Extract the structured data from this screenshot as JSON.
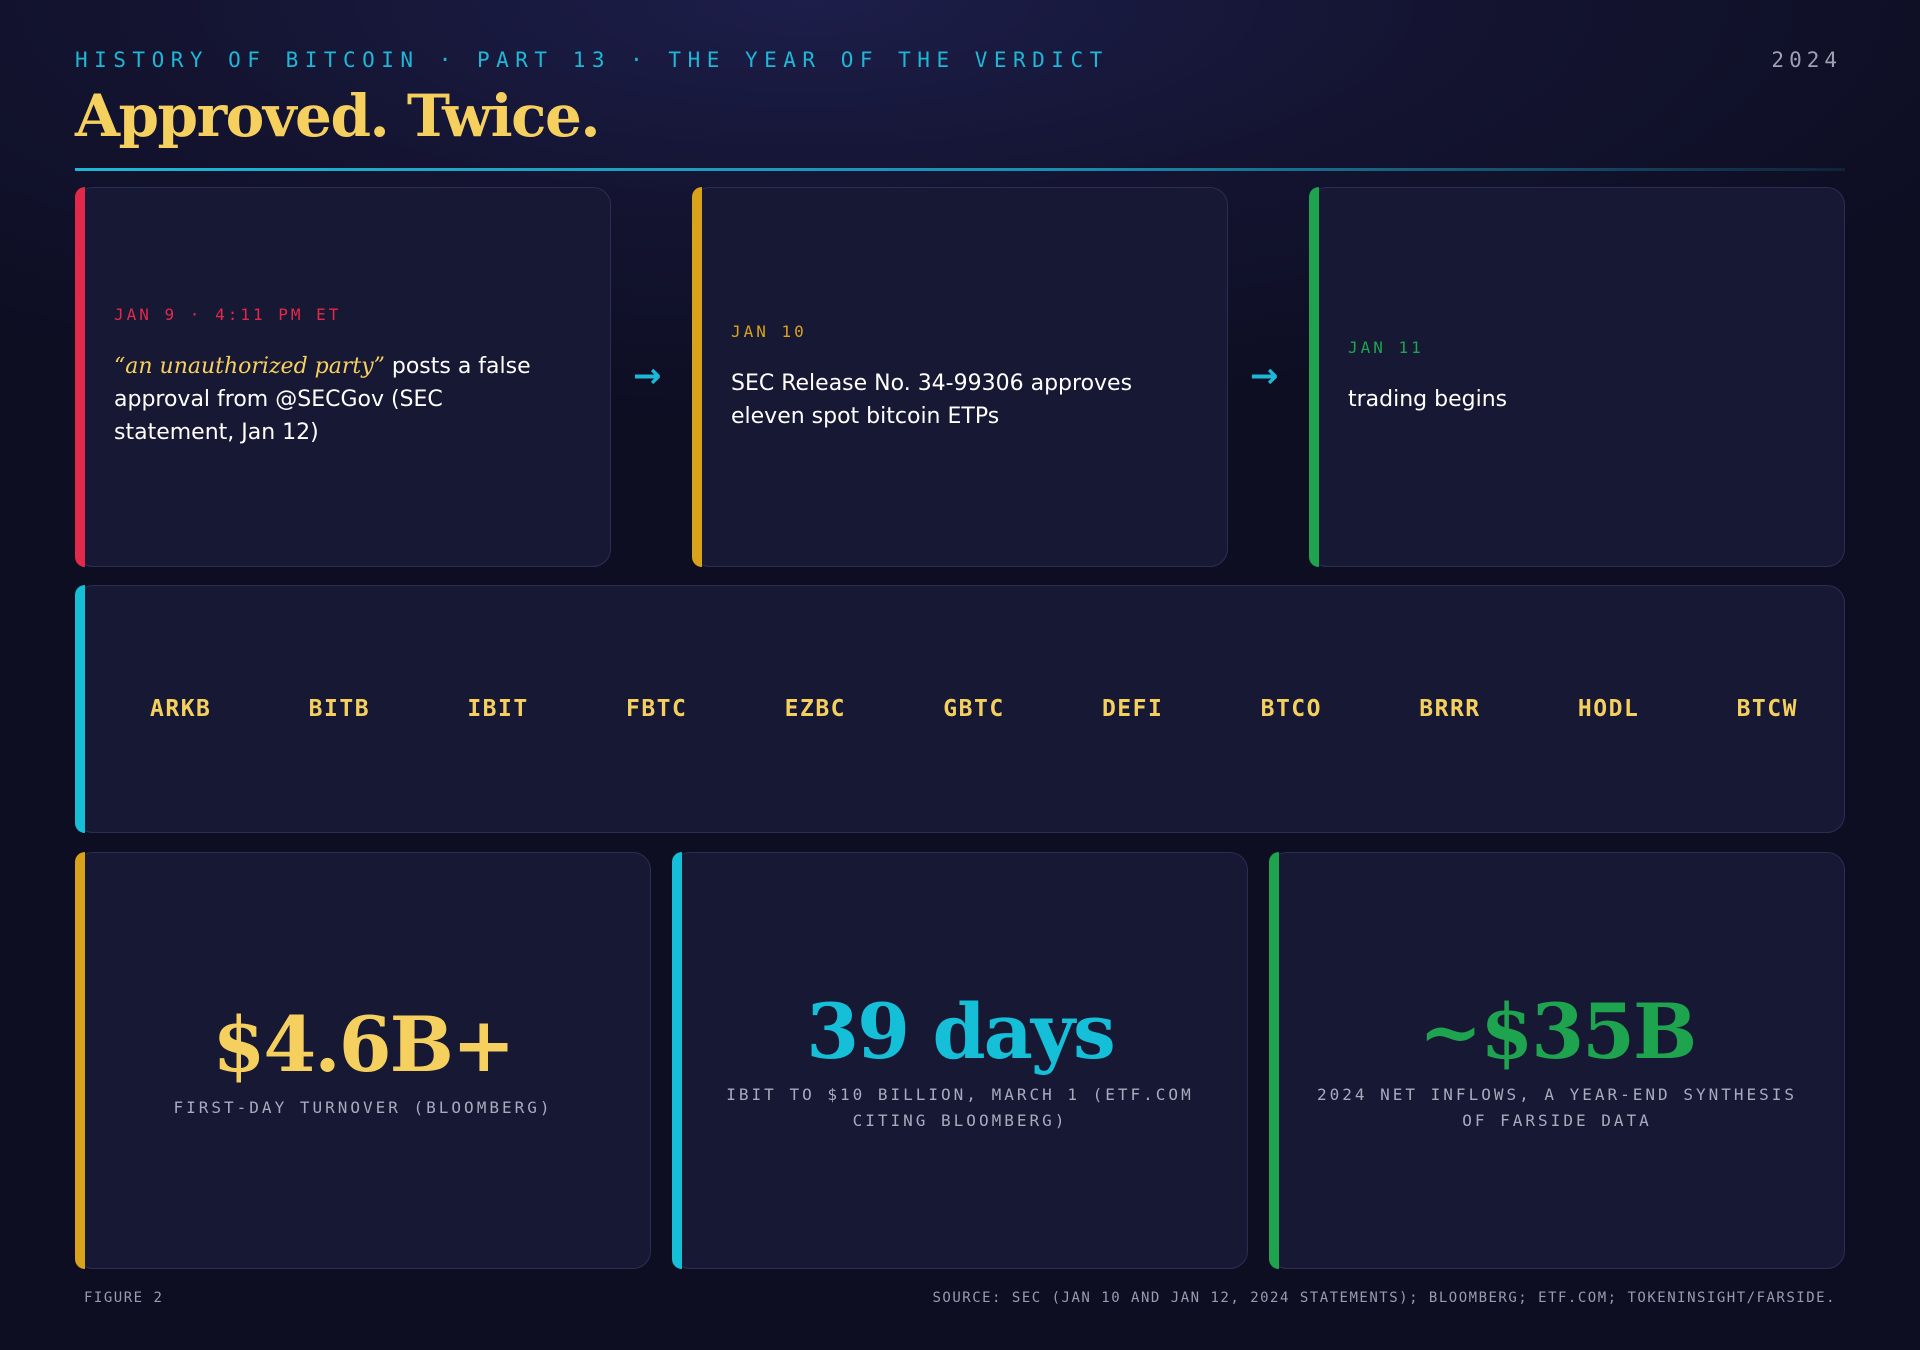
{
  "header": {
    "kicker": "HISTORY OF BITCOIN · PART 13 · THE YEAR OF THE VERDICT",
    "year": "2024",
    "title": "Approved. Twice."
  },
  "events": [
    {
      "date": "JAN 9 · 4:11 PM ET",
      "quote": "“an unauthorized party”",
      "text": " posts a false approval from @SECGov (SEC statement, Jan 12)",
      "accent": "#e2294a"
    },
    {
      "date": "JAN 10",
      "text": "SEC Release No. 34-99306 approves eleven spot bitcoin ETPs",
      "accent": "#d9a21b"
    },
    {
      "date": "JAN 11",
      "text": "trading begins",
      "accent": "#1ea44e"
    }
  ],
  "tickers": [
    "ARKB",
    "BITB",
    "IBIT",
    "FBTC",
    "EZBC",
    "GBTC",
    "DEFI",
    "BTCO",
    "BRRR",
    "HODL",
    "BTCW"
  ],
  "stats": [
    {
      "value": "$4.6B+",
      "label": "FIRST-DAY TURNOVER (BLOOMBERG)",
      "accent": "#f5d05f"
    },
    {
      "value": "39 days",
      "label": "IBIT TO $10 BILLION, MARCH 1 (ETF.COM CITING BLOOMBERG)",
      "accent": "#15bfd8"
    },
    {
      "value": "~$35B",
      "label": "2024 NET INFLOWS, A YEAR-END SYNTHESIS OF FARSIDE DATA",
      "accent": "#1ea44e"
    }
  ],
  "footer": {
    "figure": "FIGURE 2",
    "source": "SOURCE: SEC (JAN 10 AND JAN 12, 2024 STATEMENTS); BLOOMBERG; ETF.COM; TOKENINSIGHT/FARSIDE."
  },
  "colors": {
    "kicker": "#1fb7d6",
    "title": "#f5d05f",
    "ticker_accent": "#15bfd8",
    "card_bg": "#171834"
  }
}
